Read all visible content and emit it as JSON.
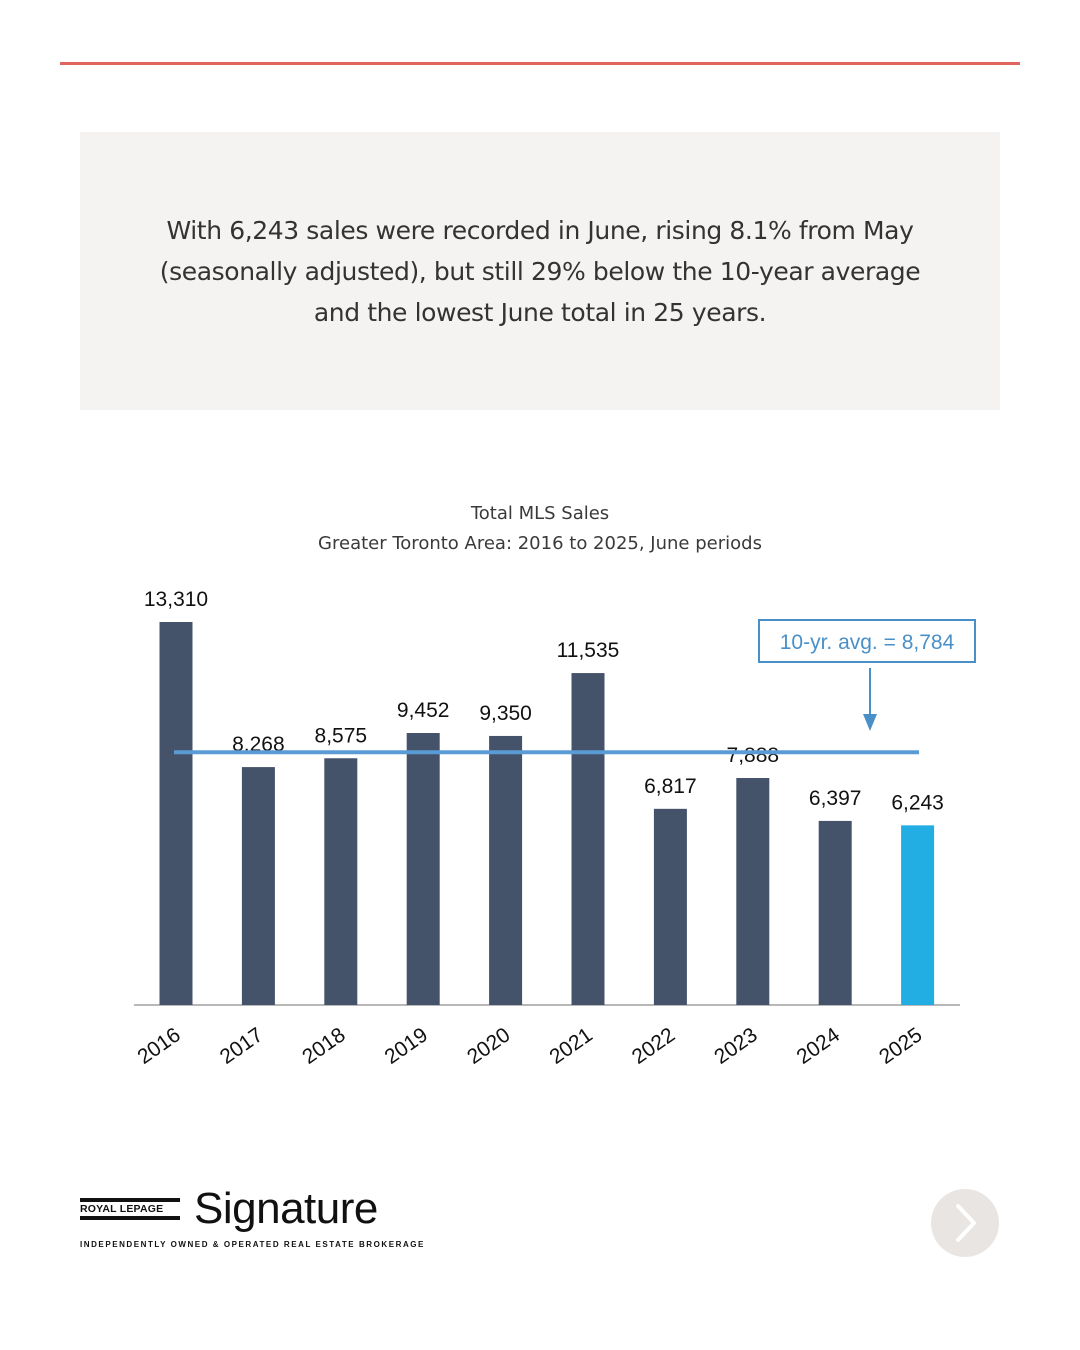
{
  "summary": {
    "text": "With 6,243 sales were recorded in June, rising 8.1% from May (seasonally adjusted), but still 29% below the 10-year average and the lowest June total in 25 years."
  },
  "chart_data": {
    "type": "bar",
    "title": "Total MLS Sales",
    "subtitle": "Greater Toronto Area: 2016 to 2025, June periods",
    "categories": [
      "2016",
      "2017",
      "2018",
      "2019",
      "2020",
      "2021",
      "2022",
      "2023",
      "2024",
      "2025"
    ],
    "values": [
      13310,
      8268,
      8575,
      9452,
      9350,
      11535,
      6817,
      7888,
      6397,
      6243
    ],
    "value_labels": [
      "13,310",
      "8,268",
      "8,575",
      "9,452",
      "9,350",
      "11,535",
      "6,817",
      "7,888",
      "6,397",
      "6,243"
    ],
    "highlight_index": 9,
    "average": 8784,
    "average_label": "10-yr. avg. = 8,784",
    "ylim": [
      0,
      13310
    ],
    "grid": false,
    "colors": {
      "bar": "#44526a",
      "highlight": "#22ade3",
      "average_line": "#5b9bd5",
      "annotation": "#4a90c8"
    }
  },
  "branding": {
    "royal_lepage": "ROYAL LEPAGE",
    "signature": "Signature",
    "tagline": "INDEPENDENTLY OWNED & OPERATED REAL ESTATE BROKERAGE"
  },
  "colors": {
    "accent_rule": "#e0655c",
    "summary_bg": "#f4f3f2"
  },
  "navigation": {
    "next_icon": "chevron-right-icon"
  }
}
